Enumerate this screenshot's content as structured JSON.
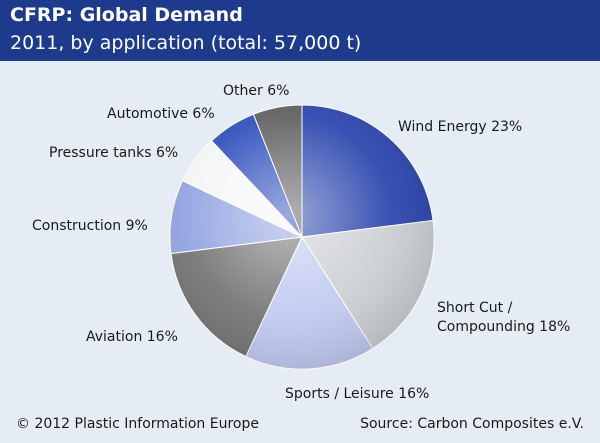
{
  "header": {
    "title": "CFRP: Global Demand",
    "subtitle": "2011, by application (total: 57,000 t)"
  },
  "chart_data": {
    "type": "pie",
    "slices": [
      {
        "label": "Wind Energy 23%",
        "value": 23
      },
      {
        "label": "Short Cut / Compounding 18%",
        "value": 18
      },
      {
        "label": "Sports / Leisure 16%",
        "value": 16
      },
      {
        "label": "Aviation 16%",
        "value": 16
      },
      {
        "label": "Construction 9%",
        "value": 9
      },
      {
        "label": "Pressure tanks 6%",
        "value": 6
      },
      {
        "label": "Automotive 6%",
        "value": 6
      },
      {
        "label": "Other 6%",
        "value": 6
      }
    ],
    "colors": [
      "#1e3aa8",
      "#c8cbd0",
      "#bcc6ef",
      "#6d6d6d",
      "#8c9ee0",
      "#f5f5f5",
      "#2244b8",
      "#555555"
    ]
  },
  "footer": {
    "copyright": "© 2012 Plastic Information Europe",
    "source": "Source: Carbon Composites e.V."
  }
}
